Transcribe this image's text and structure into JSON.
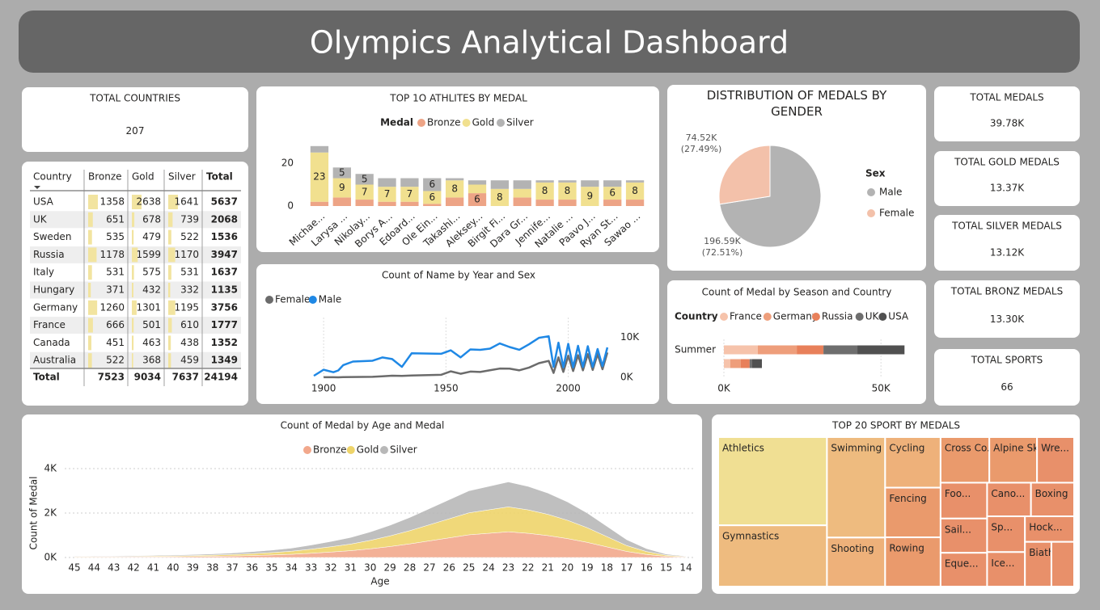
{
  "title": "Olympics Analytical Dashboard",
  "cards": [
    {
      "label": "TOTAL COUNTRIES",
      "value": "207",
      "color": "#252423"
    },
    {
      "label": "TOTAL MEDALS",
      "value": "39.78K",
      "color": "#252423"
    },
    {
      "label": "TOTAL GOLD MEDALS",
      "value": "13.37K",
      "color": "#e6cf6e"
    },
    {
      "label": "TOTAL SILVER MEDALS",
      "value": "13.12K",
      "color": "#b3b3b3"
    },
    {
      "label": "TOTAL BRONZ MEDALS",
      "value": "13.30K",
      "color": "#eba688"
    },
    {
      "label": "TOTAL SPORTS",
      "value": "66",
      "color": "#252423"
    }
  ],
  "table": {
    "header": [
      "Country",
      "Bronze",
      "Gold",
      "Silver",
      "Total"
    ],
    "rows": [
      [
        "USA",
        1358,
        2638,
        1641,
        5637
      ],
      [
        "UK",
        651,
        678,
        739,
        2068
      ],
      [
        "Sweden",
        535,
        479,
        522,
        1536
      ],
      [
        "Russia",
        1178,
        1599,
        1170,
        3947
      ],
      [
        "Italy",
        531,
        575,
        531,
        1637
      ],
      [
        "Hungary",
        371,
        432,
        332,
        1135
      ],
      [
        "Germany",
        1260,
        1301,
        1195,
        3756
      ],
      [
        "France",
        666,
        501,
        610,
        1777
      ],
      [
        "Canada",
        451,
        463,
        438,
        1352
      ],
      [
        "Australia",
        522,
        368,
        459,
        1349
      ]
    ],
    "total": [
      "Total",
      7523,
      9034,
      7637,
      24194
    ]
  },
  "chart_data": [
    {
      "type": "bar",
      "stacked": true,
      "title": "TOP 1O ATHLITES BY MEDAL",
      "legend_title": "Medal",
      "categories": [
        "Michae...",
        "Larysa ...",
        "Nikolay...",
        "Borys A...",
        "Edoard...",
        "Ole Ein...",
        "Takashi...",
        "Aleksey...",
        "Birgit Fi...",
        "Dara Gr...",
        "Jennife...",
        "Natalie ...",
        "Paavo J...",
        "Ryan St...",
        "Sawao ..."
      ],
      "series": [
        {
          "name": "Bronze",
          "color": "#eda486",
          "values": [
            2,
            4,
            3,
            2,
            2,
            1,
            4,
            6,
            0,
            4,
            3,
            3,
            0,
            3,
            3
          ]
        },
        {
          "name": "Gold",
          "color": "#f1e08f",
          "values": [
            23,
            9,
            7,
            7,
            7,
            6,
            8,
            4,
            8,
            4,
            8,
            8,
            9,
            6,
            8
          ]
        },
        {
          "name": "Silver",
          "color": "#b3b3b3",
          "values": [
            3,
            5,
            5,
            4,
            4,
            6,
            1,
            2,
            4,
            4,
            1,
            1,
            3,
            3,
            1
          ]
        }
      ],
      "ylim": [
        0,
        30
      ],
      "yticks": [
        0,
        20
      ]
    },
    {
      "type": "pie",
      "title": "DISTRIBUTION OF MEDALS BY GENDER",
      "legend_title": "Sex",
      "categories": [
        "Male",
        "Female"
      ],
      "values": [
        196594,
        74522
      ],
      "value_labels": [
        "196.59K (72.51%)",
        "74.52K (27.49%)"
      ],
      "colors": [
        "#b3b3b3",
        "#f3c1aa"
      ]
    },
    {
      "type": "line",
      "title": "Count of Name by Year and Sex",
      "x": [
        1896,
        1900,
        1904,
        1906,
        1908,
        1912,
        1920,
        1924,
        1928,
        1932,
        1936,
        1948,
        1952,
        1956,
        1960,
        1964,
        1968,
        1972,
        1976,
        1980,
        1984,
        1988,
        1992,
        1994,
        1996,
        1998,
        2000,
        2002,
        2004,
        2006,
        2008,
        2010,
        2012,
        2014,
        2016
      ],
      "series": [
        {
          "name": "Female",
          "color": "#6b6b6b",
          "values": [
            null,
            33,
            16,
            11,
            47,
            87,
            134,
            244,
            404,
            347,
            468,
            628,
            1497,
            893,
            1435,
            1348,
            1777,
            2193,
            2172,
            1756,
            2447,
            3543,
            4124,
            1105,
            5008,
            1357,
            5431,
            1582,
            5546,
            1757,
            5816,
            1847,
            5815,
            2023,
            6223
          ]
        },
        {
          "name": "Male",
          "color": "#1f88e5",
          "values": [
            380,
            1903,
            1285,
            1722,
            3054,
            3953,
            4158,
            4989,
            4588,
            2622,
            6038,
            5900,
            6773,
            5000,
            7000,
            6900,
            7200,
            8500,
            7600,
            6900,
            8300,
            9900,
            10300,
            2600,
            8700,
            2500,
            8400,
            2500,
            7900,
            2600,
            7800,
            2600,
            7100,
            2800,
            7500
          ]
        }
      ],
      "xlim": [
        1895,
        2018
      ],
      "xticks": [
        1900,
        1950,
        2000
      ],
      "ylim": [
        0,
        15000
      ],
      "yticks": [
        {
          "value": 0,
          "label": "0K"
        },
        {
          "value": 10000,
          "label": "10K"
        }
      ],
      "grid": true
    },
    {
      "type": "bar",
      "orientation": "horizontal",
      "stacked": true,
      "title": "Count of Medal by Season and Country",
      "legend_title": "Country",
      "categories": [
        "Summer",
        null
      ],
      "series": [
        {
          "name": "France",
          "color": "#f6c3ab",
          "values": [
            10800,
            2000
          ]
        },
        {
          "name": "Germany",
          "color": "#ee9e7b",
          "values": [
            12400,
            3400
          ]
        },
        {
          "name": "Russia",
          "color": "#e8805a",
          "values": [
            8500,
            2800
          ]
        },
        {
          "name": "UK",
          "color": "#6e6e6e",
          "values": [
            10800,
            800
          ]
        },
        {
          "name": "USA",
          "color": "#505050",
          "values": [
            15000,
            3100
          ]
        }
      ],
      "xlim": [
        0,
        60000
      ],
      "xticks": [
        {
          "value": 0,
          "label": "0K"
        },
        {
          "value": 50000,
          "label": "50K"
        }
      ],
      "grid": true
    },
    {
      "type": "area",
      "stacked": true,
      "title": "Count of Medal by Age and Medal",
      "x_label": "Age",
      "y_label": "Count of Medal",
      "categories": [
        45,
        44,
        43,
        42,
        41,
        40,
        39,
        38,
        37,
        36,
        35,
        34,
        33,
        32,
        31,
        30,
        29,
        28,
        27,
        26,
        25,
        24,
        23,
        22,
        21,
        20,
        19,
        18,
        17,
        16,
        15,
        14
      ],
      "series": [
        {
          "name": "Bronze",
          "color": "#f2a88c",
          "values": [
            20,
            24,
            24,
            27,
            30,
            37,
            44,
            54,
            68,
            88,
            112,
            143,
            190,
            245,
            306,
            391,
            493,
            612,
            748,
            884,
            1020,
            1088,
            1156,
            1088,
            986,
            850,
            680,
            476,
            272,
            136,
            51,
            20
          ]
        },
        {
          "name": "Gold",
          "color": "#eed46a",
          "values": [
            20,
            23,
            23,
            26,
            30,
            36,
            43,
            53,
            66,
            86,
            109,
            139,
            185,
            238,
            297,
            380,
            479,
            594,
            726,
            858,
            990,
            1056,
            1122,
            1056,
            957,
            825,
            660,
            462,
            264,
            132,
            50,
            20
          ]
        },
        {
          "name": "Silver",
          "color": "#b8b8b8",
          "values": [
            20,
            23,
            23,
            27,
            30,
            37,
            43,
            53,
            66,
            86,
            109,
            138,
            185,
            237,
            297,
            379,
            478,
            594,
            726,
            858,
            990,
            1056,
            1122,
            1056,
            957,
            825,
            660,
            462,
            264,
            132,
            49,
            20
          ]
        }
      ],
      "ylim": [
        0,
        4200
      ],
      "yticks": [
        {
          "value": 0,
          "label": "0K"
        },
        {
          "value": 2000,
          "label": "2K"
        },
        {
          "value": 4000,
          "label": "4K"
        }
      ],
      "grid": true
    },
    {
      "type": "treemap",
      "title": "TOP 20 SPORT BY MEDALS",
      "categories": [
        "Athletics",
        "Gymnastics",
        "Swimming",
        "Shooting",
        "Cycling",
        "Fencing",
        "Rowing",
        "Cross Co...",
        "Alpine Sk...",
        "Wre...",
        "Foo...",
        "Sail...",
        "Eque...",
        "Cano...",
        "Boxing",
        "Sp...",
        "Ice...",
        "Hock...",
        "Biath...",
        null
      ],
      "values": [
        3969,
        2756,
        2419,
        1180,
        1160,
        1140,
        1130,
        920,
        900,
        700,
        690,
        660,
        650,
        610,
        600,
        560,
        540,
        520,
        490,
        420
      ],
      "colors": [
        "#f0df93",
        "#eebb7f",
        "#eebb7f",
        "#eeb17a",
        "#eeb17a",
        "#ea9a6c",
        "#ea9a6c",
        "#ea9a6c",
        "#ea9a6c",
        "#e8906a",
        "#e8906a",
        "#e8906a",
        "#e8906a",
        "#e8906a",
        "#e8906a",
        "#e8906a",
        "#e8906a",
        "#e8906a",
        "#e8906a",
        "#e8906a"
      ]
    }
  ]
}
